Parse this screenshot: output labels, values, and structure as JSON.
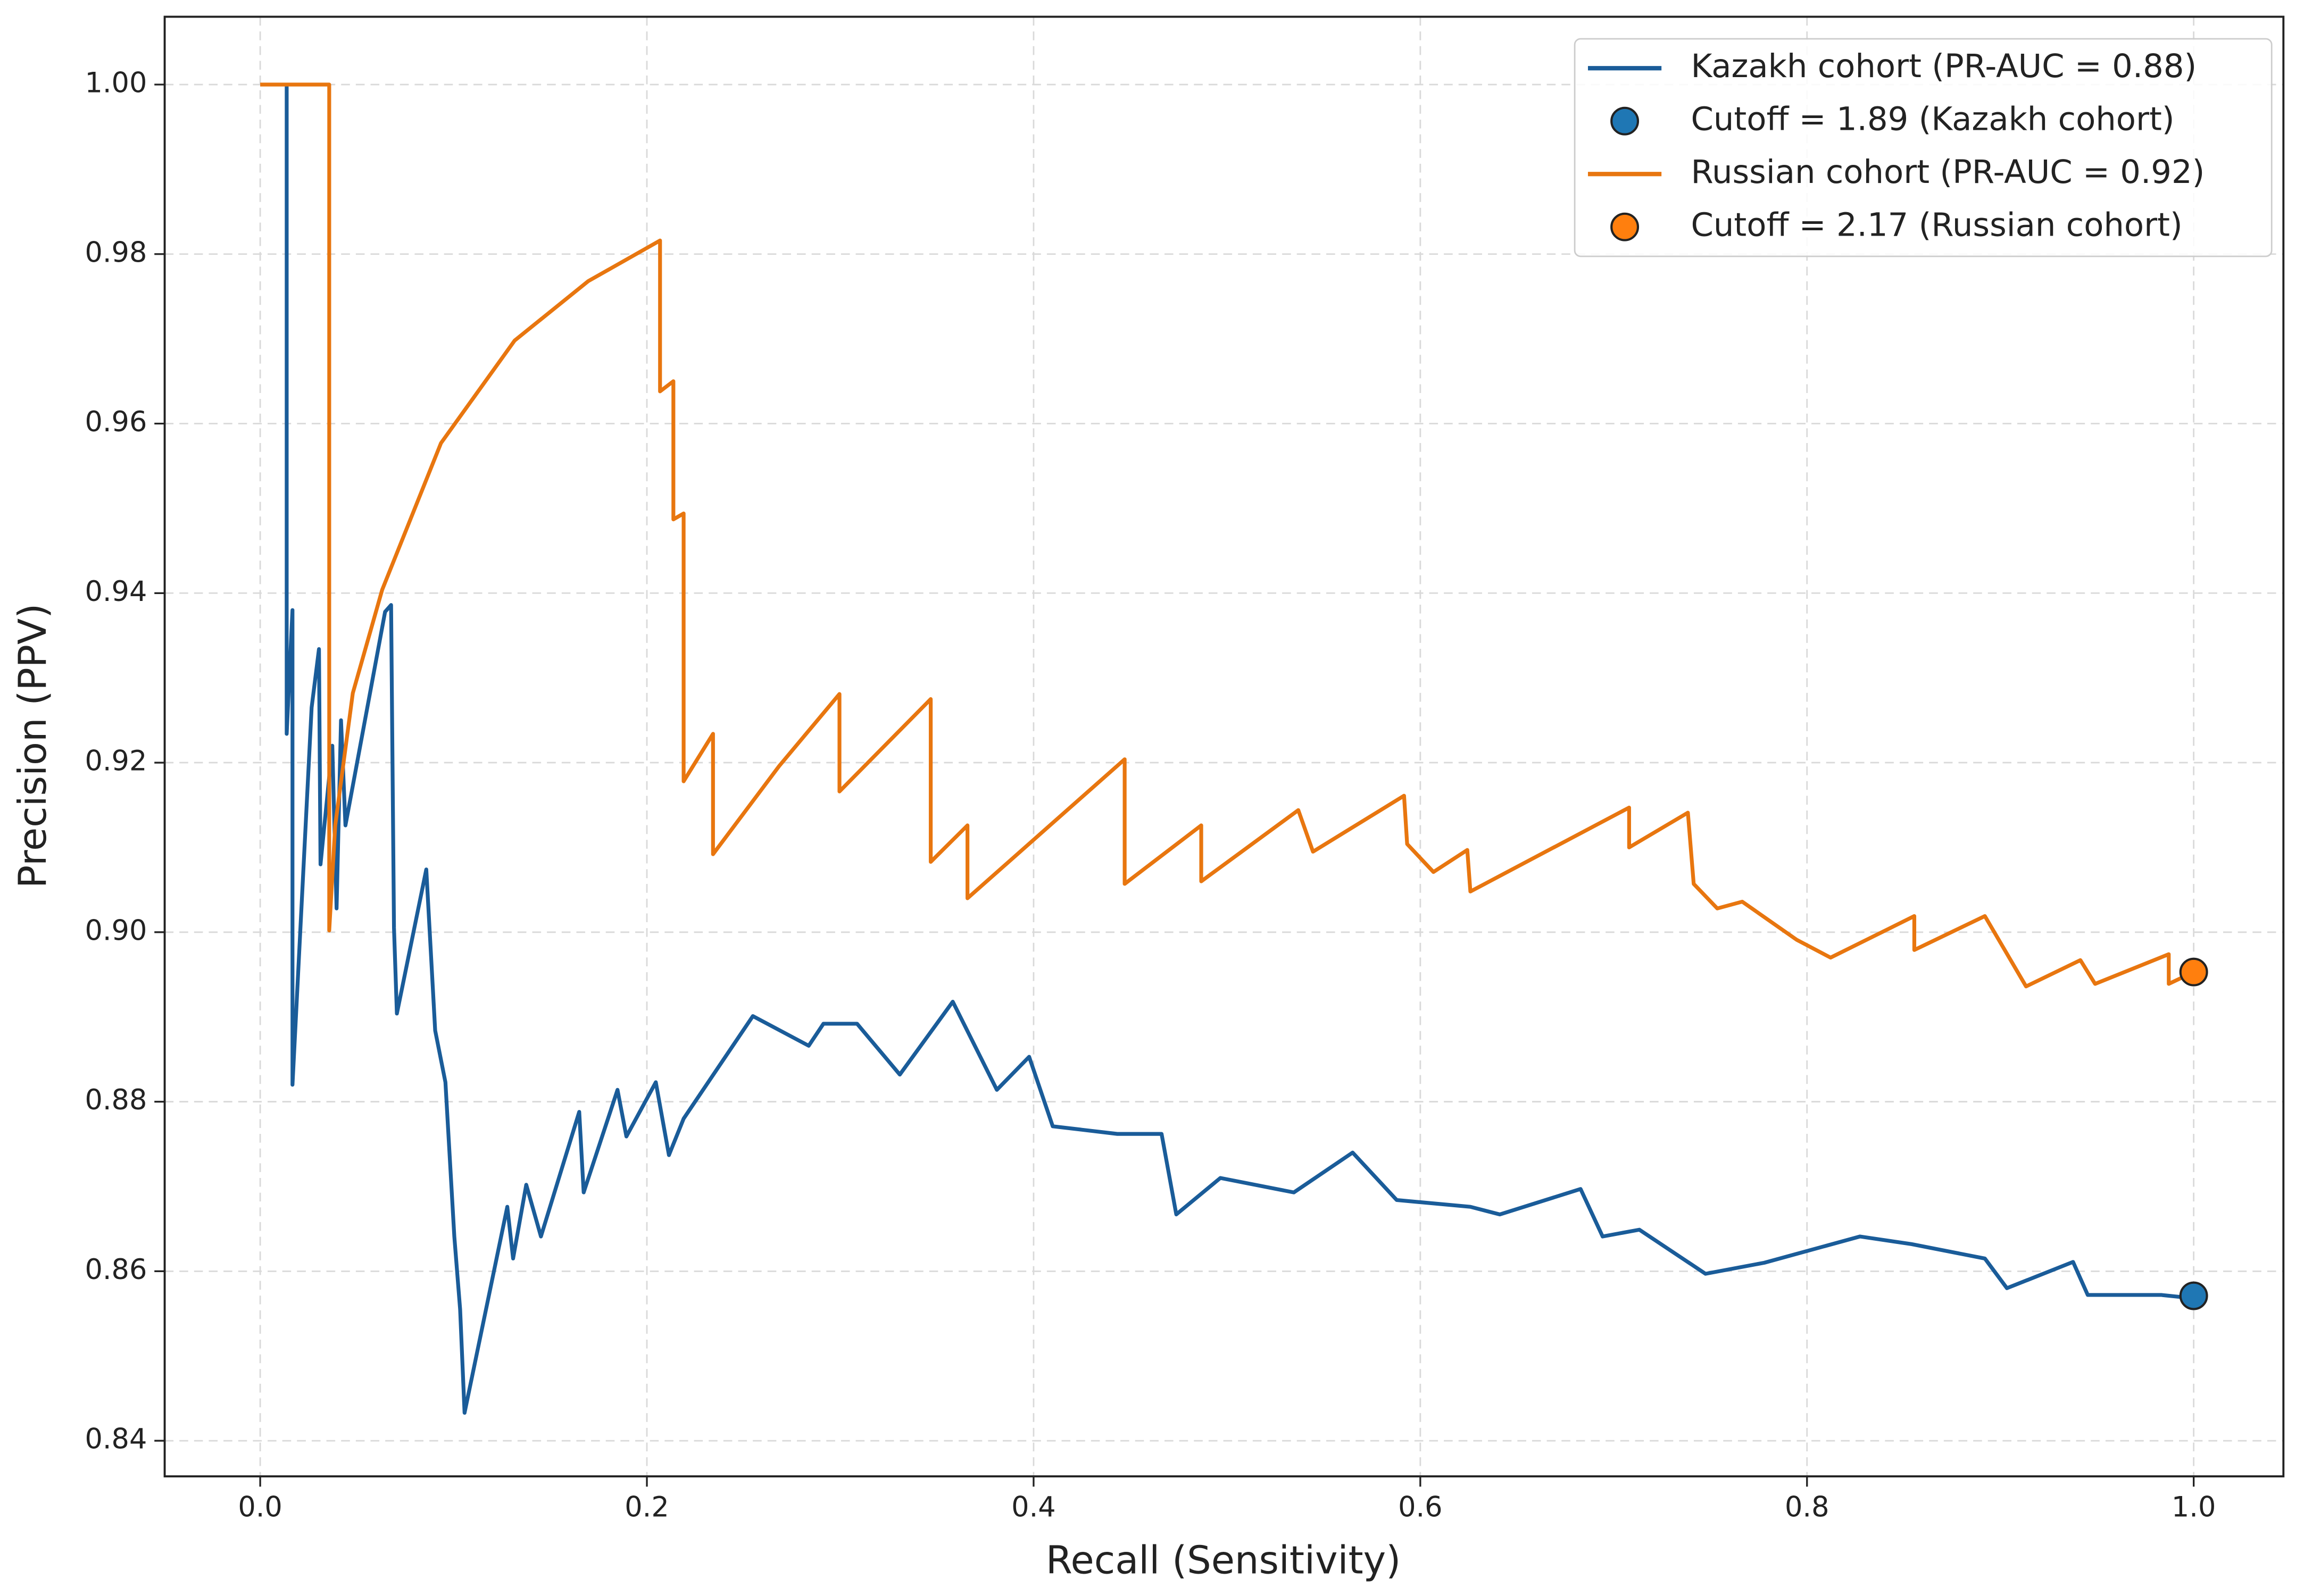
{
  "chart_data": {
    "type": "line",
    "x_label": "Recall (Sensitivity)",
    "y_label": "Precision (PPV)",
    "xlim": [
      -0.0494,
      1.0464
    ],
    "ylim": [
      0.8358,
      1.008
    ],
    "xticks": [
      {
        "value": 0,
        "label": "0.0"
      },
      0.2,
      0.4,
      0.6,
      0.8,
      {
        "value": 1,
        "label": "1.0"
      }
    ],
    "yticks": [
      0.84,
      0.86,
      0.88,
      {
        "value": 0.9,
        "label": "0.90"
      },
      0.92,
      0.94,
      0.96,
      0.98,
      {
        "value": 1,
        "label": "1.00"
      }
    ],
    "grid": true,
    "legend": "upper right",
    "series": [
      {
        "name": "Kazakh cohort (PR-AUC = 0.88)",
        "style": "line",
        "color": "#1a5c99",
        "x": [
          0.0137,
          0.0137,
          0.0167,
          0.0167,
          0.0266,
          0.0304,
          0.0312,
          0.0373,
          0.0395,
          0.0418,
          0.0441,
          0.0646,
          0.0677,
          0.0692,
          0.0707,
          0.0859,
          0.0905,
          0.0958,
          0.1004,
          0.1034,
          0.1057,
          0.1278,
          0.1308,
          0.1376,
          0.1452,
          0.165,
          0.1673,
          0.1848,
          0.1894,
          0.2046,
          0.2114,
          0.219,
          0.2548,
          0.2837,
          0.2913,
          0.3087,
          0.3308,
          0.3582,
          0.381,
          0.3977,
          0.4099,
          0.4433,
          0.4662,
          0.4738,
          0.4966,
          0.5346,
          0.565,
          0.5878,
          0.6259,
          0.6411,
          0.6829,
          0.6943,
          0.7133,
          0.7475,
          0.7779,
          0.8274,
          0.854,
          0.892,
          0.9034,
          0.9376,
          0.9452,
          0.9833,
          1.0
        ],
        "y": [
          1.0,
          0.9234,
          0.938,
          0.882,
          0.9265,
          0.9334,
          0.908,
          0.922,
          0.9028,
          0.925,
          0.9126,
          0.9378,
          0.9386,
          0.9005,
          0.8904,
          0.9074,
          0.8884,
          0.8823,
          0.8641,
          0.8555,
          0.8433,
          0.8676,
          0.8615,
          0.8702,
          0.8641,
          0.8788,
          0.8693,
          0.8814,
          0.8759,
          0.8823,
          0.8737,
          0.878,
          0.8901,
          0.8866,
          0.8892,
          0.8892,
          0.8832,
          0.8918,
          0.8814,
          0.8853,
          0.8771,
          0.8762,
          0.8762,
          0.8667,
          0.871,
          0.8693,
          0.874,
          0.8684,
          0.8676,
          0.8667,
          0.8697,
          0.8641,
          0.8649,
          0.8597,
          0.861,
          0.8641,
          0.8632,
          0.8615,
          0.858,
          0.8611,
          0.8572,
          0.8572,
          0.8568
        ]
      },
      {
        "name": "Cutoff = 1.89 (Kazakh cohort)",
        "style": "marker",
        "color": "#1f77b4",
        "x": [
          1.0
        ],
        "y": [
          0.8571
        ]
      },
      {
        "name": "Russian cohort (PR-AUC = 0.92)",
        "style": "line",
        "color": "#e8760f",
        "x": [
          0,
          0.0357,
          0.0357,
          0.0388,
          0.0479,
          0.0631,
          0.0935,
          0.1316,
          0.1696,
          0.2068,
          0.2068,
          0.2137,
          0.2137,
          0.219,
          0.219,
          0.2342,
          0.2342,
          0.2684,
          0.2996,
          0.2996,
          0.3468,
          0.3468,
          0.3658,
          0.3658,
          0.4471,
          0.4471,
          0.4867,
          0.4867,
          0.5369,
          0.5445,
          0.5916,
          0.5932,
          0.6068,
          0.6243,
          0.6259,
          0.708,
          0.708,
          0.7384,
          0.7414,
          0.7536,
          0.7665,
          0.7947,
          0.8122,
          0.8555,
          0.8555,
          0.892,
          0.9133,
          0.9414,
          0.949,
          0.9871,
          0.9871,
          1.0
        ],
        "y": [
          1.0,
          1.0,
          0.9002,
          0.9126,
          0.9282,
          0.9404,
          0.9577,
          0.9698,
          0.9768,
          0.9816,
          0.9638,
          0.965,
          0.9487,
          0.9494,
          0.9178,
          0.9234,
          0.9092,
          0.9196,
          0.9281,
          0.9166,
          0.9275,
          0.9083,
          0.9126,
          0.904,
          0.9204,
          0.9057,
          0.9126,
          0.906,
          0.9144,
          0.9095,
          0.9161,
          0.9104,
          0.9071,
          0.9097,
          0.9048,
          0.9147,
          0.91,
          0.9141,
          0.9057,
          0.9028,
          0.9036,
          0.8991,
          0.897,
          0.9019,
          0.8979,
          0.9019,
          0.8936,
          0.8967,
          0.8939,
          0.8974,
          0.8939,
          0.8953
        ]
      },
      {
        "name": "Cutoff = 2.17 (Russian cohort)",
        "style": "marker",
        "color": "#ff7f0e",
        "x": [
          1.0
        ],
        "y": [
          0.8953
        ]
      }
    ]
  }
}
